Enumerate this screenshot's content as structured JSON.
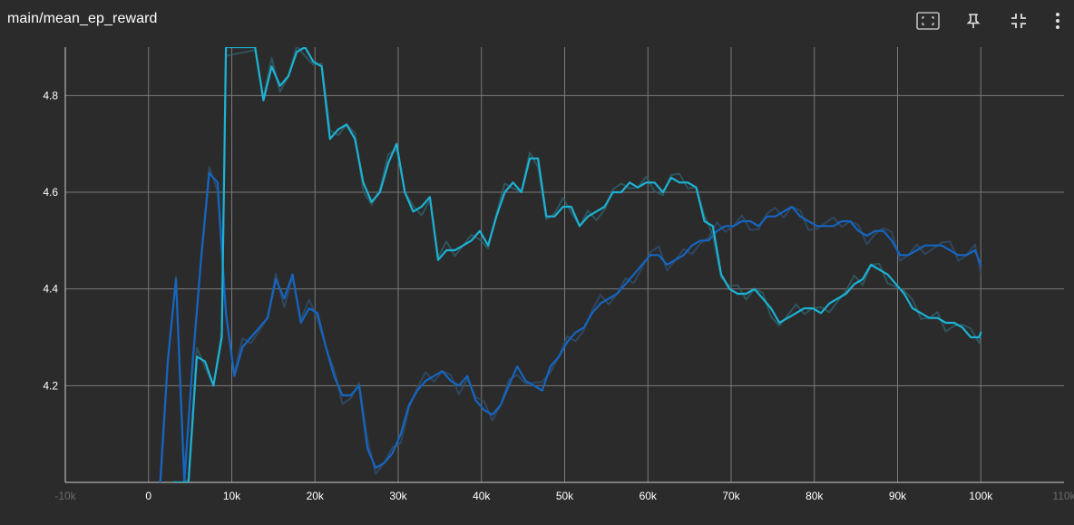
{
  "panel": {
    "title": "main/mean_ep_reward",
    "toolbar": [
      {
        "name": "fit-domain-icon",
        "label": "Fit domain to data"
      },
      {
        "name": "pin-icon",
        "label": "Pin card"
      },
      {
        "name": "collapse-icon",
        "label": "Collapse card"
      },
      {
        "name": "more-vert-icon",
        "label": "More"
      }
    ]
  },
  "colors": {
    "background": "#2b2b2b",
    "grid": "#7a7a7a",
    "series_a": "#1565c0",
    "series_b": "#1cb2d4",
    "raw_a": "#2f4d6e",
    "raw_b": "#2f5f68"
  },
  "chart_data": {
    "type": "line",
    "title": "main/mean_ep_reward",
    "xlabel": "",
    "ylabel": "",
    "xlim": [
      -10000,
      110000
    ],
    "ylim": [
      4.0,
      4.9
    ],
    "x_ticks": [
      "-10k",
      "0",
      "10k",
      "20k",
      "30k",
      "40k",
      "50k",
      "60k",
      "70k",
      "80k",
      "90k",
      "100k",
      "110k"
    ],
    "y_ticks": [
      "4.2",
      "4.4",
      "4.6",
      "4.8"
    ],
    "grid": true,
    "legend": "none",
    "series": [
      {
        "x": [
          1400,
          2300,
          3300,
          4300,
          5300,
          6300,
          7300,
          8300,
          9300,
          10300,
          11300,
          12300,
          14300,
          15300,
          16300,
          17300,
          18300,
          19300,
          20300,
          21300,
          22300,
          23300,
          24300,
          25300,
          26300,
          27300,
          28300,
          29300,
          30300,
          31300,
          32300,
          33300,
          34300,
          35300,
          36300,
          37300,
          38300,
          39300,
          40300,
          41300,
          42300,
          43300,
          44300,
          45300,
          46300,
          47300,
          48300,
          49300,
          50300,
          51300,
          52300,
          53300,
          54300,
          55300,
          56300,
          57300,
          58300,
          59300,
          60300,
          61300,
          62300,
          63300,
          64300,
          65300,
          66300,
          67300,
          68300,
          69300,
          70300,
          71300,
          72300,
          73300,
          74300,
          75300,
          76300,
          77300,
          78300,
          79300,
          80300,
          81300,
          82300,
          83300,
          84300,
          85300,
          86300,
          87300,
          88300,
          89300,
          90300,
          91300,
          92300,
          93300,
          94300,
          95300,
          96300,
          97300,
          98300,
          99300,
          100000
        ],
        "y": [
          4.0,
          4.25,
          4.42,
          4.0,
          4.25,
          4.46,
          4.64,
          4.62,
          4.35,
          4.22,
          4.28,
          4.3,
          4.34,
          4.42,
          4.38,
          4.43,
          4.33,
          4.36,
          4.35,
          4.28,
          4.22,
          4.18,
          4.18,
          4.2,
          4.07,
          4.03,
          4.04,
          4.06,
          4.1,
          4.16,
          4.19,
          4.21,
          4.22,
          4.23,
          4.21,
          4.2,
          4.22,
          4.17,
          4.15,
          4.14,
          4.16,
          4.2,
          4.24,
          4.21,
          4.2,
          4.19,
          4.24,
          4.26,
          4.29,
          4.31,
          4.32,
          4.35,
          4.37,
          4.38,
          4.39,
          4.41,
          4.43,
          4.45,
          4.47,
          4.47,
          4.45,
          4.46,
          4.47,
          4.49,
          4.5,
          4.5,
          4.52,
          4.53,
          4.53,
          4.54,
          4.54,
          4.53,
          4.55,
          4.55,
          4.56,
          4.57,
          4.55,
          4.54,
          4.53,
          4.53,
          4.53,
          4.54,
          4.54,
          4.52,
          4.51,
          4.52,
          4.52,
          4.5,
          4.47,
          4.47,
          4.48,
          4.49,
          4.49,
          4.49,
          4.48,
          4.47,
          4.47,
          4.48,
          4.45
        ]
      },
      {
        "x": [
          3000,
          3800,
          4800,
          5800,
          6800,
          7800,
          8800,
          9300,
          12800,
          13800,
          14800,
          15800,
          16800,
          17800,
          18800,
          19800,
          20800,
          21800,
          22800,
          23800,
          24800,
          25800,
          26800,
          27800,
          28800,
          29800,
          30800,
          31800,
          32800,
          33800,
          34800,
          35800,
          36800,
          37800,
          38800,
          39800,
          40800,
          41800,
          42800,
          43800,
          44800,
          45800,
          46800,
          47800,
          48800,
          49800,
          50800,
          51800,
          52800,
          53800,
          54800,
          55800,
          56800,
          57800,
          58800,
          59800,
          60800,
          61800,
          62800,
          63800,
          64800,
          65800,
          66800,
          67800,
          68800,
          69800,
          70800,
          71800,
          72800,
          73800,
          74800,
          75800,
          76800,
          77800,
          78800,
          79800,
          80800,
          81800,
          82800,
          83800,
          84800,
          85800,
          86800,
          87800,
          88800,
          89800,
          90800,
          91800,
          92800,
          93800,
          94800,
          95800,
          96800,
          97800,
          98800,
          99800,
          100000
        ],
        "y": [
          4.0,
          4.0,
          4.0,
          4.26,
          4.25,
          4.2,
          4.3,
          4.9,
          4.9,
          4.79,
          4.86,
          4.82,
          4.84,
          4.89,
          4.9,
          4.87,
          4.86,
          4.71,
          4.73,
          4.74,
          4.71,
          4.62,
          4.58,
          4.6,
          4.66,
          4.7,
          4.6,
          4.56,
          4.57,
          4.59,
          4.46,
          4.48,
          4.48,
          4.49,
          4.5,
          4.52,
          4.49,
          4.55,
          4.6,
          4.62,
          4.6,
          4.67,
          4.67,
          4.55,
          4.55,
          4.57,
          4.57,
          4.53,
          4.55,
          4.56,
          4.57,
          4.6,
          4.6,
          4.62,
          4.61,
          4.62,
          4.62,
          4.6,
          4.63,
          4.62,
          4.62,
          4.61,
          4.54,
          4.53,
          4.43,
          4.4,
          4.39,
          4.39,
          4.4,
          4.38,
          4.36,
          4.33,
          4.34,
          4.35,
          4.36,
          4.36,
          4.35,
          4.37,
          4.38,
          4.39,
          4.41,
          4.42,
          4.45,
          4.44,
          4.43,
          4.41,
          4.39,
          4.36,
          4.35,
          4.34,
          4.34,
          4.33,
          4.33,
          4.32,
          4.3,
          4.3,
          4.31
        ]
      }
    ]
  }
}
